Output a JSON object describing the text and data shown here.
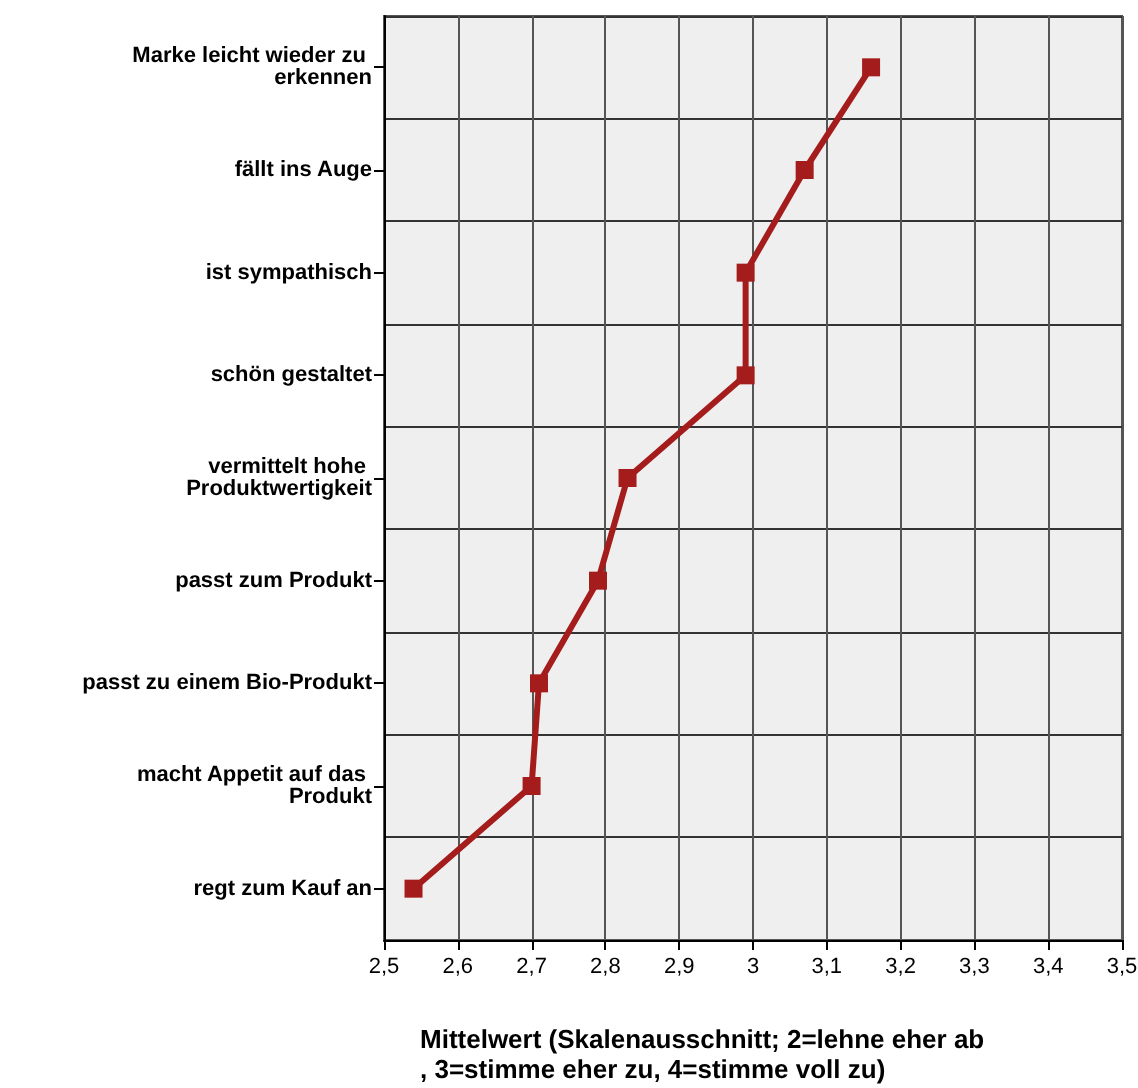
{
  "chart_data": {
    "type": "line",
    "xlabel": "Mittelwert (Skalenausschnitt; 2=lehne eher ab, 3=stimme eher zu, 4=stimme voll zu)",
    "categories": [
      "Marke leicht wieder zu erkennen",
      "fällt ins Auge",
      "ist sympathisch",
      "schön gestaltet",
      "vermittelt hohe Produktwertigkeit",
      "passt zum Produkt",
      "passt zu einem Bio-Produkt",
      "macht Appetit auf das Produkt",
      "regt zum Kauf an"
    ],
    "orientation": "horizontal",
    "series": [
      {
        "color": "#a51c1c",
        "values": [
          3.16,
          3.07,
          2.99,
          2.99,
          2.83,
          2.79,
          2.71,
          2.7,
          2.54
        ]
      }
    ],
    "xlim": [
      2.5,
      3.5
    ],
    "xticks": [
      {
        "value": 2.5,
        "label": "2,5"
      },
      {
        "value": 2.6,
        "label": "2,6"
      },
      {
        "value": 2.7,
        "label": "2,7"
      },
      {
        "value": 2.8,
        "label": "2,8"
      },
      {
        "value": 2.9,
        "label": "2,9"
      },
      {
        "value": 3,
        "label": "3"
      },
      {
        "value": 3.1,
        "label": "3,1"
      },
      {
        "value": 3.2,
        "label": "3,2"
      },
      {
        "value": 3.3,
        "label": "3,3"
      },
      {
        "value": 3.4,
        "label": "3,4"
      },
      {
        "value": 3.5,
        "label": "3,5"
      }
    ],
    "grid": true,
    "marker": "square",
    "line_style": "solid"
  }
}
